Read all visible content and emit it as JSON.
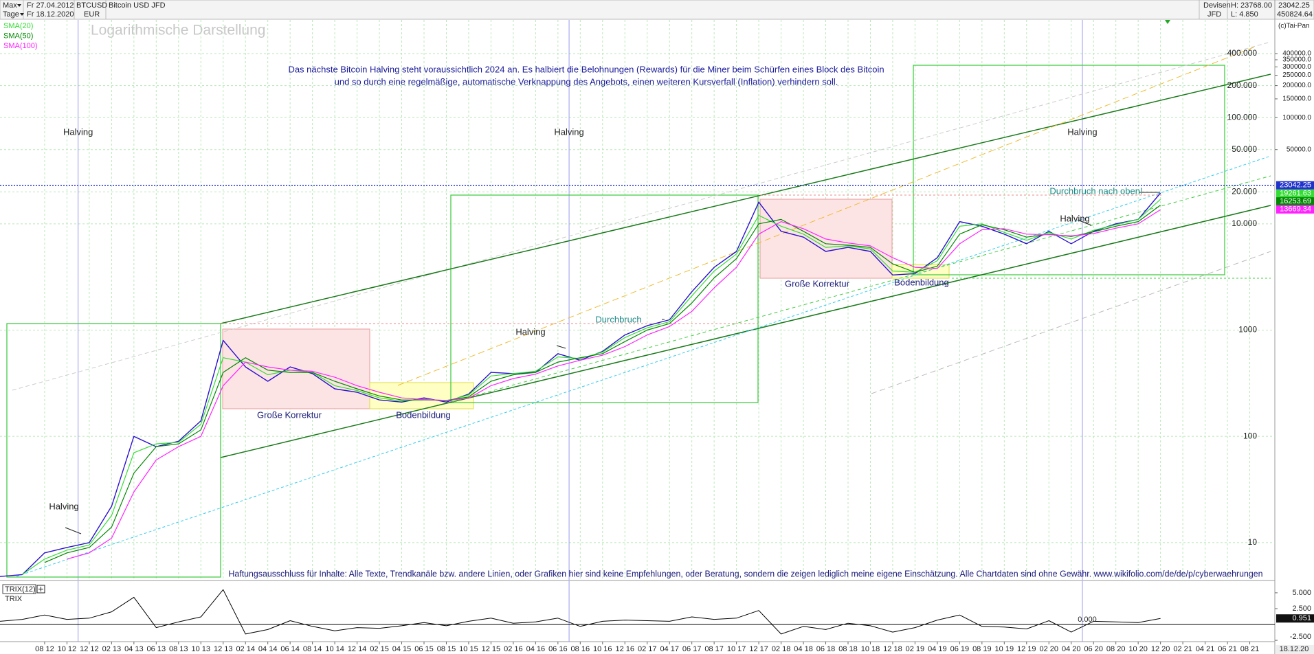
{
  "header": {
    "range": "Max",
    "period": "Tage",
    "start": "Fr 27.04.2012",
    "end": "Fr 18.12.2020",
    "symbol": "BTCUSD",
    "currency": "EUR",
    "name": "Bitcoin USD JFD",
    "market": "Devisen",
    "broker": "JFD",
    "high": "H: 23768.00",
    "low": "L: 4.850",
    "scale_max": "450824.64",
    "copyright": "(c)Tai-Pan"
  },
  "chart_data": {
    "type": "line",
    "title": "Logarithmische Darstellung",
    "log_scale": true,
    "grid": true,
    "x": [
      "2012-04",
      "2012-06",
      "2012-08",
      "2012-10",
      "2012-12",
      "2013-02",
      "2013-04",
      "2013-06",
      "2013-08",
      "2013-10",
      "2013-12",
      "2014-02",
      "2014-04",
      "2014-06",
      "2014-08",
      "2014-10",
      "2014-12",
      "2015-02",
      "2015-04",
      "2015-06",
      "2015-08",
      "2015-10",
      "2015-12",
      "2016-02",
      "2016-04",
      "2016-06",
      "2016-08",
      "2016-10",
      "2016-12",
      "2017-02",
      "2017-04",
      "2017-06",
      "2017-08",
      "2017-10",
      "2017-12",
      "2018-02",
      "2018-04",
      "2018-06",
      "2018-08",
      "2018-10",
      "2018-12",
      "2019-02",
      "2019-04",
      "2019-06",
      "2019-08",
      "2019-10",
      "2019-12",
      "2020-02",
      "2020-04",
      "2020-06",
      "2020-08",
      "2020-10",
      "2020-12"
    ],
    "xlim": [
      "2012-04",
      "2021-10"
    ],
    "ylim": [
      4.4,
      830000
    ],
    "yticks": [
      10,
      100,
      1000,
      {
        "value": 10000,
        "label": "10.000"
      },
      {
        "value": 20000,
        "label": "20.000"
      },
      {
        "value": 50000,
        "label": "50.000"
      },
      {
        "value": 100000,
        "label": "100.000"
      },
      {
        "value": 200000,
        "label": "200.000"
      },
      {
        "value": 400000,
        "label": "400.000"
      }
    ],
    "y_far_ticks": [
      {
        "value": 50000,
        "label": "50000.0"
      },
      {
        "value": 100000,
        "label": "100000.0"
      },
      {
        "value": 150000,
        "label": "150000.0"
      },
      {
        "value": 200000,
        "label": "200000.0"
      },
      {
        "value": 250000,
        "label": "250000.0"
      },
      {
        "value": 300000,
        "label": "300000.0"
      },
      {
        "value": 350000,
        "label": "350000.0"
      },
      {
        "value": 400000,
        "label": "400000.0"
      }
    ],
    "xticks": [
      {
        "value": "2012-08",
        "label": "08 12"
      },
      {
        "value": "2012-10",
        "label": "10 12"
      },
      {
        "value": "2012-12",
        "label": "12 12"
      },
      {
        "value": "2013-02",
        "label": "02 13"
      },
      {
        "value": "2013-04",
        "label": "04 13"
      },
      {
        "value": "2013-06",
        "label": "06 13"
      },
      {
        "value": "2013-08",
        "label": "08 13"
      },
      {
        "value": "2013-10",
        "label": "10 13"
      },
      {
        "value": "2013-12",
        "label": "12 13"
      },
      {
        "value": "2014-02",
        "label": "02 14"
      },
      {
        "value": "2014-04",
        "label": "04 14"
      },
      {
        "value": "2014-06",
        "label": "06 14"
      },
      {
        "value": "2014-08",
        "label": "08 14"
      },
      {
        "value": "2014-10",
        "label": "10 14"
      },
      {
        "value": "2014-12",
        "label": "12 14"
      },
      {
        "value": "2015-02",
        "label": "02 15"
      },
      {
        "value": "2015-04",
        "label": "04 15"
      },
      {
        "value": "2015-06",
        "label": "06 15"
      },
      {
        "value": "2015-08",
        "label": "08 15"
      },
      {
        "value": "2015-10",
        "label": "10 15"
      },
      {
        "value": "2015-12",
        "label": "12 15"
      },
      {
        "value": "2016-02",
        "label": "02 16"
      },
      {
        "value": "2016-04",
        "label": "04 16"
      },
      {
        "value": "2016-06",
        "label": "06 16"
      },
      {
        "value": "2016-08",
        "label": "08 16"
      },
      {
        "value": "2016-10",
        "label": "10 16"
      },
      {
        "value": "2016-12",
        "label": "12 16"
      },
      {
        "value": "2017-02",
        "label": "02 17"
      },
      {
        "value": "2017-04",
        "label": "04 17"
      },
      {
        "value": "2017-06",
        "label": "06 17"
      },
      {
        "value": "2017-08",
        "label": "08 17"
      },
      {
        "value": "2017-10",
        "label": "10 17"
      },
      {
        "value": "2017-12",
        "label": "12 17"
      },
      {
        "value": "2018-02",
        "label": "02 18"
      },
      {
        "value": "2018-04",
        "label": "04 18"
      },
      {
        "value": "2018-06",
        "label": "06 18"
      },
      {
        "value": "2018-08",
        "label": "08 18"
      },
      {
        "value": "2018-10",
        "label": "10 18"
      },
      {
        "value": "2018-12",
        "label": "12 18"
      },
      {
        "value": "2019-02",
        "label": "02 19"
      },
      {
        "value": "2019-04",
        "label": "04 19"
      },
      {
        "value": "2019-06",
        "label": "06 19"
      },
      {
        "value": "2019-08",
        "label": "08 19"
      },
      {
        "value": "2019-10",
        "label": "10 19"
      },
      {
        "value": "2019-12",
        "label": "12 19"
      },
      {
        "value": "2020-02",
        "label": "02 20"
      },
      {
        "value": "2020-04",
        "label": "04 20"
      },
      {
        "value": "2020-06",
        "label": "06 20"
      },
      {
        "value": "2020-08",
        "label": "08 20"
      },
      {
        "value": "2020-10",
        "label": "10 20"
      },
      {
        "value": "2020-12",
        "label": "12 20"
      },
      {
        "value": "2021-02",
        "label": "02 21"
      },
      {
        "value": "2021-04",
        "label": "04 21"
      },
      {
        "value": "2021-06",
        "label": "06 21"
      },
      {
        "value": "2021-08",
        "label": "08 21"
      }
    ],
    "x_end_label": "18.12.20",
    "current": 23042.25,
    "current_color": "#2233cc",
    "series": [
      {
        "color": "#2a10d0",
        "values": [
          4.8,
          5,
          8,
          9,
          10,
          22,
          100,
          80,
          90,
          140,
          800,
          450,
          330,
          450,
          390,
          280,
          260,
          220,
          210,
          230,
          210,
          250,
          400,
          390,
          400,
          600,
          520,
          630,
          900,
          1100,
          1250,
          2300,
          3900,
          5500,
          16000,
          8500,
          7500,
          5500,
          6000,
          5500,
          3300,
          3400,
          4800,
          10500,
          9500,
          8000,
          6500,
          8500,
          6500,
          8500,
          10000,
          11000,
          19500
        ]
      },
      {
        "name": "SMA(20)",
        "color": "#33dd33",
        "last_value": 19261.63,
        "values": [
          null,
          5,
          7,
          8.5,
          9.5,
          18,
          70,
          85,
          88,
          130,
          550,
          500,
          380,
          420,
          400,
          300,
          270,
          230,
          215,
          225,
          215,
          245,
          370,
          390,
          410,
          560,
          540,
          620,
          850,
          1050,
          1200,
          2100,
          3600,
          5200,
          12000,
          9500,
          8000,
          6000,
          6200,
          5800,
          3600,
          3500,
          4500,
          9500,
          10000,
          8300,
          7000,
          8300,
          7200,
          8700,
          9800,
          11000,
          17000
        ]
      },
      {
        "name": "SMA(50)",
        "color": "#008800",
        "last_value": 16253.69,
        "values": [
          null,
          null,
          6.5,
          8,
          9,
          14,
          45,
          80,
          85,
          115,
          400,
          550,
          420,
          400,
          400,
          330,
          280,
          240,
          220,
          220,
          218,
          235,
          330,
          380,
          400,
          500,
          550,
          600,
          780,
          1000,
          1150,
          1800,
          3100,
          4700,
          10000,
          11000,
          8500,
          6500,
          6300,
          6000,
          4200,
          3500,
          4000,
          8000,
          9800,
          8800,
          7500,
          8000,
          7600,
          8400,
          9500,
          10500,
          15000
        ]
      },
      {
        "name": "SMA(100)",
        "color": "#ff22ff",
        "last_value": 13669.34,
        "values": [
          null,
          null,
          null,
          7,
          8,
          11,
          30,
          60,
          80,
          100,
          300,
          500,
          450,
          420,
          410,
          360,
          300,
          260,
          230,
          222,
          218,
          228,
          300,
          350,
          385,
          460,
          520,
          580,
          700,
          900,
          1080,
          1500,
          2500,
          3900,
          8000,
          10500,
          9000,
          7200,
          6600,
          6200,
          4800,
          3900,
          3800,
          6500,
          8800,
          9000,
          8000,
          7900,
          7700,
          8100,
          9100,
          10000,
          13600
        ]
      }
    ],
    "halvings": [
      {
        "x": "2012-11",
        "label": "Halving"
      },
      {
        "x": "2016-07",
        "label": "Halving"
      },
      {
        "x": "2020-05",
        "label": "Halving"
      }
    ],
    "annotations": [
      "Das nächste Bitcoin Halving steht voraussichtlich 2024 an. Es halbiert die Belohnungen (Rewards) für die Miner beim Schürfen eines Block des Bitcoin",
      "und so durch eine regelmäßige, automatische Verknappung des Angebots, einen weiteren Kursverfall (Inflation) verhindern soll.",
      "Halving",
      "Halving",
      "Halving",
      "Große Korrektur",
      "Große Korrektur",
      "Bodenbildung",
      "Bodenbildung",
      "Durchbruch",
      "Durchbruch nach oben!",
      "Haftungsausschluss für Inhalte: Alle Texte, Trendkanäle bzw. andere Linien, oder Grafiken hier sind keine Empfehlungen, oder Beratung, sondern die zeigen lediglich meine eigene Einschätzung. Alle Chartdaten sind ohne Gewähr.  www.wikifolio.com/de/de/p/cyberwaehrungen"
    ],
    "trix": {
      "type": "line",
      "name": "TRIX(12)",
      "label": "TRIX",
      "color": "#000000",
      "ylim": [
        -2.6,
        6.4
      ],
      "yticks": [
        {
          "value": 5,
          "label": "5.000"
        },
        {
          "value": 2.5,
          "label": "2.500"
        },
        {
          "value": -2.5,
          "label": "-2.500"
        }
      ],
      "zero": {
        "value": 0,
        "label": "0.000"
      },
      "current": 0.951,
      "values": [
        0.5,
        0.8,
        1.5,
        0.8,
        1.0,
        2.0,
        4.3,
        -0.5,
        0.4,
        1.2,
        5.5,
        -1.5,
        -0.8,
        0.6,
        -0.3,
        -1.0,
        -0.5,
        -0.6,
        -0.2,
        0.3,
        -0.2,
        0.5,
        1.0,
        0.2,
        0.4,
        1.0,
        -0.3,
        0.5,
        0.7,
        0.6,
        0.5,
        1.2,
        0.8,
        1.0,
        2.2,
        -1.5,
        -0.3,
        -0.8,
        0.2,
        -0.2,
        -1.2,
        -0.5,
        0.7,
        1.5,
        -0.3,
        -0.4,
        -0.7,
        0.6,
        -1.2,
        0.5,
        0.4,
        0.3,
        0.95
      ]
    }
  }
}
